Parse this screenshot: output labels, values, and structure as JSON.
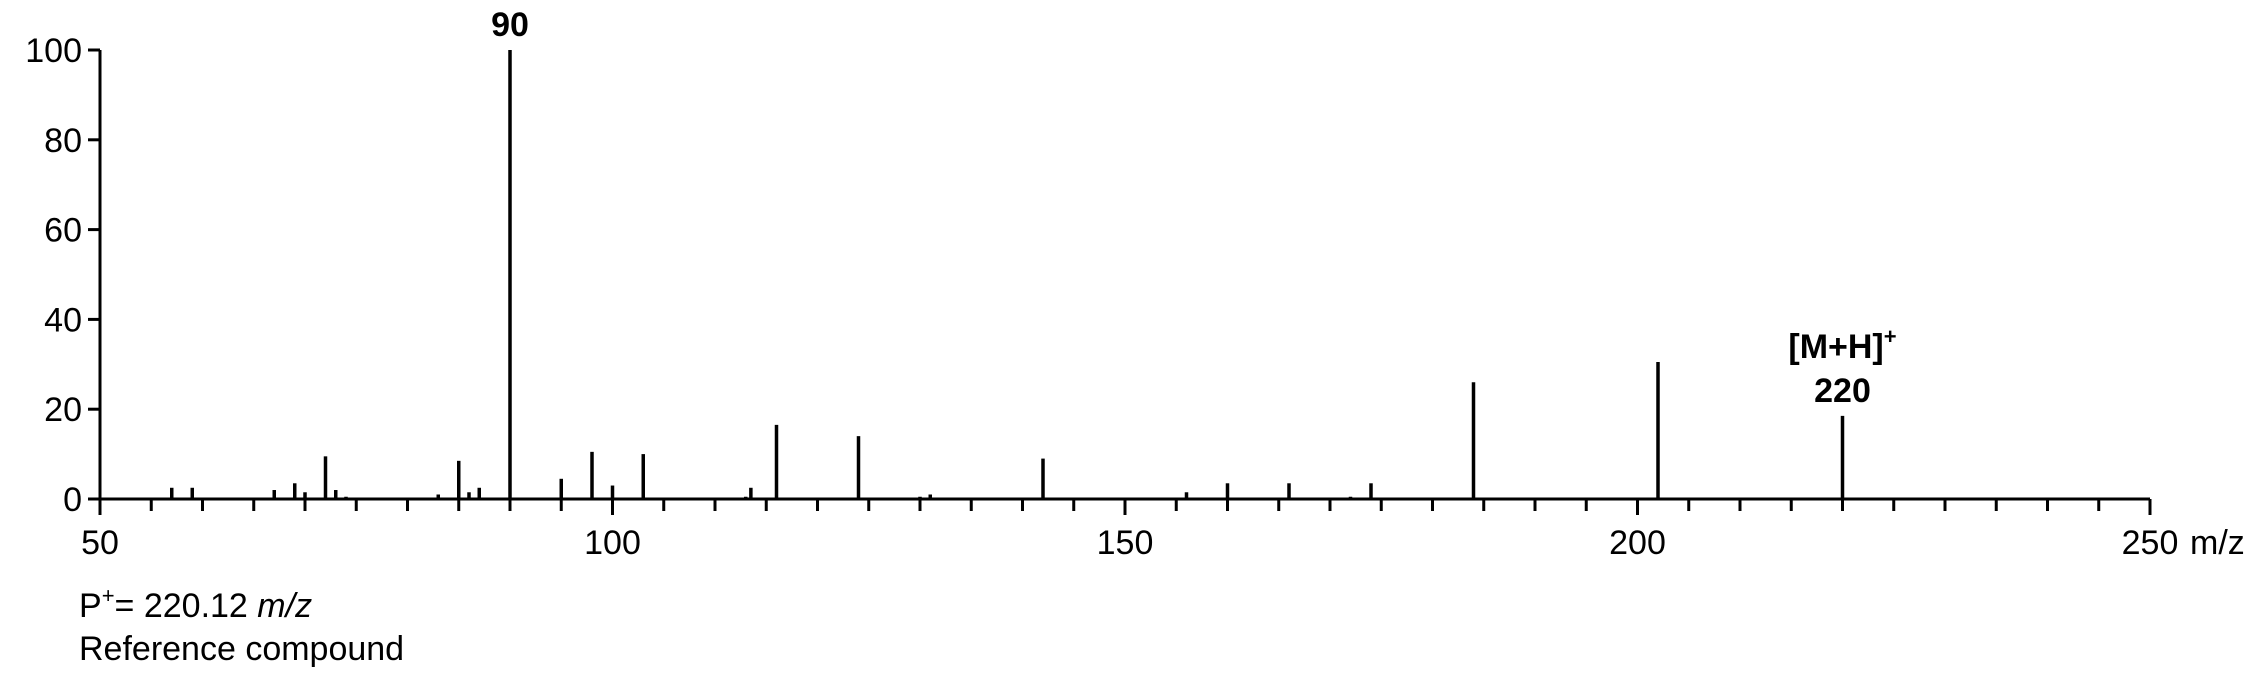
{
  "chart_data": {
    "type": "bar",
    "xunit": "m/z",
    "xlim": [
      50,
      250
    ],
    "ylim": [
      0,
      100
    ],
    "x_ticks_major": [
      50,
      100,
      150,
      200,
      250
    ],
    "x_ticks_minor_step": 5,
    "y_ticks": [
      0,
      20,
      40,
      60,
      80,
      100
    ],
    "grid": false,
    "color": "#000000",
    "peaks": [
      {
        "mz": 57,
        "intensity": 2.5
      },
      {
        "mz": 59,
        "intensity": 2.5
      },
      {
        "mz": 67,
        "intensity": 2
      },
      {
        "mz": 69,
        "intensity": 3.5
      },
      {
        "mz": 70,
        "intensity": 1.5
      },
      {
        "mz": 72,
        "intensity": 9.5
      },
      {
        "mz": 73,
        "intensity": 2
      },
      {
        "mz": 74,
        "intensity": 0.5
      },
      {
        "mz": 83,
        "intensity": 1
      },
      {
        "mz": 85,
        "intensity": 8.5
      },
      {
        "mz": 86,
        "intensity": 1.5
      },
      {
        "mz": 87,
        "intensity": 2.5
      },
      {
        "mz": 90,
        "intensity": 100
      },
      {
        "mz": 95,
        "intensity": 4.5
      },
      {
        "mz": 98,
        "intensity": 10.5
      },
      {
        "mz": 100,
        "intensity": 3
      },
      {
        "mz": 103,
        "intensity": 10
      },
      {
        "mz": 113,
        "intensity": 0.5
      },
      {
        "mz": 113.5,
        "intensity": 2.5
      },
      {
        "mz": 116,
        "intensity": 16.5
      },
      {
        "mz": 124,
        "intensity": 14
      },
      {
        "mz": 130,
        "intensity": 0.5
      },
      {
        "mz": 131,
        "intensity": 1
      },
      {
        "mz": 142,
        "intensity": 9
      },
      {
        "mz": 156,
        "intensity": 1.5
      },
      {
        "mz": 160,
        "intensity": 3.5
      },
      {
        "mz": 166,
        "intensity": 3.5
      },
      {
        "mz": 172,
        "intensity": 0.5
      },
      {
        "mz": 174,
        "intensity": 3.5
      },
      {
        "mz": 184,
        "intensity": 26
      },
      {
        "mz": 202,
        "intensity": 30.5
      },
      {
        "mz": 220,
        "intensity": 18.5
      },
      {
        "mz": 242,
        "intensity": 0.3
      }
    ],
    "annotations": [
      {
        "mz": 90,
        "intensity": 100,
        "lines": [
          "90"
        ]
      },
      {
        "mz": 220,
        "intensity": 18.5,
        "lines": [
          "[M+H]",
          "220"
        ],
        "superscript": "+"
      }
    ]
  },
  "caption": {
    "p_prefix": "P",
    "p_superscript": "+",
    "p_value": "= 220.12",
    "p_unit": "m/z",
    "compound": "Reference compound"
  }
}
